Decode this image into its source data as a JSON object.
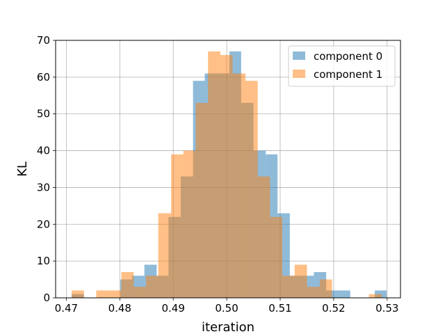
{
  "chart_data": {
    "type": "histogram",
    "xlabel": "iteration",
    "ylabel": "KL",
    "xlim": [
      0.468,
      0.5325
    ],
    "ylim": [
      0,
      70
    ],
    "xticks": [
      0.47,
      0.48,
      0.49,
      0.5,
      0.51,
      0.52,
      0.53
    ],
    "xtick_labels": [
      "0.47",
      "0.48",
      "0.49",
      "0.50",
      "0.51",
      "0.52",
      "0.53"
    ],
    "yticks": [
      0,
      10,
      20,
      30,
      40,
      50,
      60,
      70
    ],
    "ytick_labels": [
      "0",
      "10",
      "20",
      "30",
      "40",
      "50",
      "60",
      "70"
    ],
    "grid": true,
    "legend_position": "top-right",
    "series": [
      {
        "name": "component 0",
        "color": "#1f77b4",
        "alpha": 0.5,
        "bin_edges": [
          0.471,
          0.4733,
          0.4755,
          0.4778,
          0.4801,
          0.4823,
          0.4846,
          0.4869,
          0.4891,
          0.4914,
          0.4937,
          0.4959,
          0.4982,
          0.5005,
          0.5027,
          0.505,
          0.5073,
          0.5095,
          0.5118,
          0.5141,
          0.5163,
          0.5186,
          0.5209,
          0.5231,
          0.5254,
          0.5277,
          0.5299
        ],
        "counts": [
          1,
          0,
          0,
          0,
          5,
          6,
          9,
          6,
          22,
          33,
          59,
          61,
          61,
          67,
          53,
          40,
          39,
          23,
          6,
          6,
          7,
          2,
          2,
          0,
          0,
          2
        ]
      },
      {
        "name": "component 1",
        "color": "#ff7f0e",
        "alpha": 0.5,
        "bin_edges": [
          0.471,
          0.4733,
          0.4756,
          0.478,
          0.4803,
          0.4826,
          0.4849,
          0.4872,
          0.4896,
          0.4919,
          0.4942,
          0.4965,
          0.4988,
          0.5011,
          0.5035,
          0.5058,
          0.5081,
          0.5104,
          0.5127,
          0.515,
          0.5174,
          0.5197,
          0.522,
          0.5243,
          0.5266,
          0.529
        ],
        "counts": [
          2,
          0,
          2,
          2,
          7,
          3,
          6,
          23,
          39,
          40,
          53,
          67,
          66,
          61,
          59,
          33,
          22,
          6,
          9,
          3,
          5,
          0,
          0,
          0,
          1
        ]
      }
    ]
  }
}
